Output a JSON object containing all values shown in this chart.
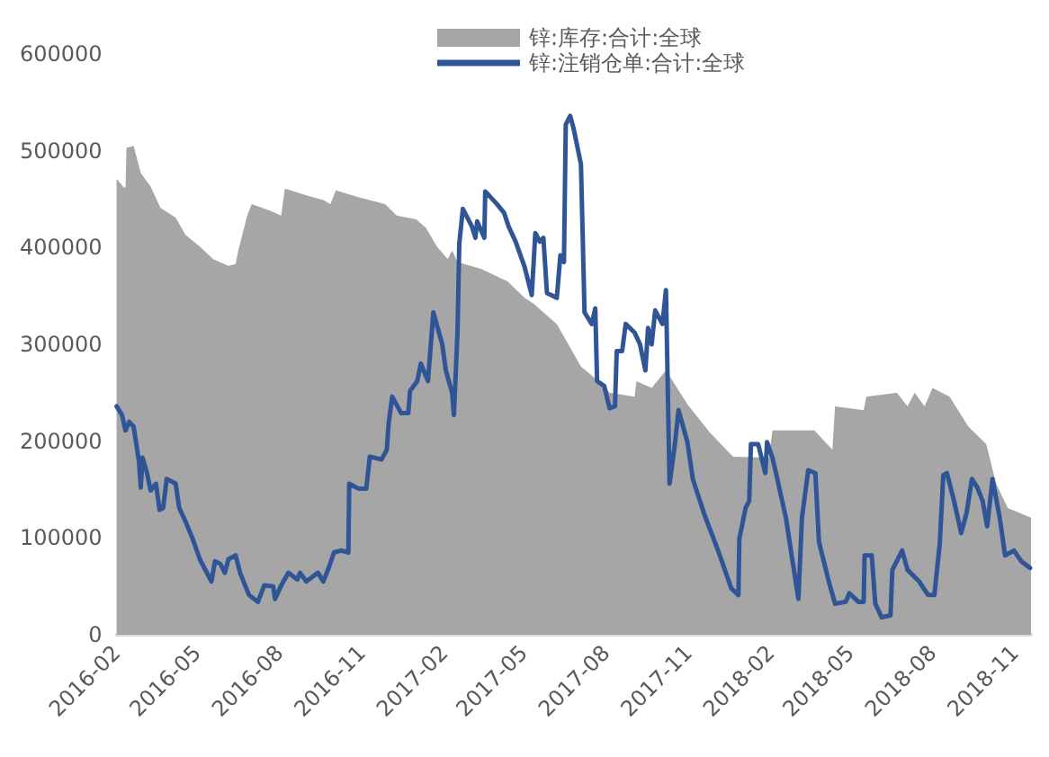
{
  "chart_data": {
    "type": "line",
    "xlim": [
      "2016-02-01",
      "2018-11-19"
    ],
    "xticks": [
      "2016-02",
      "2016-05",
      "2016-08",
      "2016-11",
      "2017-02",
      "2017-05",
      "2017-08",
      "2017-11",
      "2018-02",
      "2018-05",
      "2018-08",
      "2018-11"
    ],
    "ylim": [
      0,
      600000
    ],
    "yticks": [
      0,
      100000,
      200000,
      300000,
      400000,
      500000,
      600000
    ],
    "grid": false,
    "legend": "top",
    "marker": "none",
    "series": [
      {
        "name": "锌:库存:合计:全球",
        "type": "area",
        "color": "#a6a6a6",
        "x": [
          "2016-02-01",
          "2016-02-09",
          "2016-02-11",
          "2016-02-12",
          "2016-02-20",
          "2016-02-28",
          "2016-03-10",
          "2016-03-21",
          "2016-04-07",
          "2016-04-18",
          "2016-05-04",
          "2016-05-19",
          "2016-06-05",
          "2016-06-13",
          "2016-06-16",
          "2016-06-26",
          "2016-07-01",
          "2016-07-22",
          "2016-08-03",
          "2016-08-07",
          "2016-08-31",
          "2016-09-19",
          "2016-09-27",
          "2016-10-03",
          "2016-10-28",
          "2016-11-27",
          "2016-12-10",
          "2017-01-01",
          "2017-01-12",
          "2017-01-24",
          "2017-02-05",
          "2017-02-10",
          "2017-02-16",
          "2017-03-14",
          "2017-04-13",
          "2017-05-02",
          "2017-05-12",
          "2017-06-07",
          "2017-07-04",
          "2017-07-16",
          "2017-08-05",
          "2017-09-02",
          "2017-09-04",
          "2017-09-21",
          "2017-10-07",
          "2017-10-31",
          "2017-11-25",
          "2017-12-21",
          "2018-01-30",
          "2018-02-03",
          "2018-03-22",
          "2018-04-11",
          "2018-04-14",
          "2018-05-16",
          "2018-05-19",
          "2018-06-22",
          "2018-07-04",
          "2018-07-12",
          "2018-07-23",
          "2018-08-01",
          "2018-08-20",
          "2018-09-10",
          "2018-09-30",
          "2018-10-11",
          "2018-10-24",
          "2018-11-19"
        ],
        "values": [
          471000,
          462000,
          462000,
          503000,
          505000,
          477000,
          463000,
          441000,
          431000,
          413000,
          401000,
          388000,
          381000,
          383000,
          397000,
          433000,
          445000,
          438000,
          433000,
          461000,
          454000,
          449000,
          445000,
          459000,
          452000,
          445000,
          433000,
          429000,
          420000,
          401000,
          388000,
          397000,
          385000,
          378000,
          365000,
          348000,
          342000,
          321000,
          277000,
          268000,
          250000,
          246000,
          262000,
          255000,
          273000,
          238000,
          209000,
          184000,
          183000,
          211000,
          211000,
          191000,
          236000,
          232000,
          246000,
          250000,
          236000,
          250000,
          236000,
          255000,
          246000,
          215000,
          197000,
          156000,
          131000,
          121000
        ]
      },
      {
        "name": "锌:注销仓单:合计:全球",
        "type": "line",
        "color": "#2f5597",
        "x": [
          "2016-02-01",
          "2016-02-07",
          "2016-02-11",
          "2016-02-15",
          "2016-02-20",
          "2016-02-26",
          "2016-02-28",
          "2016-03-01",
          "2016-03-06",
          "2016-03-10",
          "2016-03-16",
          "2016-03-20",
          "2016-03-24",
          "2016-03-28",
          "2016-04-07",
          "2016-04-11",
          "2016-04-18",
          "2016-04-26",
          "2016-05-04",
          "2016-05-17",
          "2016-05-21",
          "2016-05-27",
          "2016-06-01",
          "2016-06-05",
          "2016-06-13",
          "2016-06-18",
          "2016-06-28",
          "2016-07-08",
          "2016-07-15",
          "2016-07-25",
          "2016-07-27",
          "2016-08-03",
          "2016-08-11",
          "2016-08-21",
          "2016-08-24",
          "2016-08-31",
          "2016-09-13",
          "2016-09-19",
          "2016-09-25",
          "2016-10-01",
          "2016-10-09",
          "2016-10-17",
          "2016-10-18",
          "2016-10-28",
          "2016-11-06",
          "2016-11-10",
          "2016-11-23",
          "2016-11-29",
          "2016-12-01",
          "2016-12-05",
          "2016-12-15",
          "2016-12-23",
          "2016-12-25",
          "2017-01-02",
          "2017-01-06",
          "2017-01-14",
          "2017-01-20",
          "2017-01-30",
          "2017-02-03",
          "2017-02-10",
          "2017-02-12",
          "2017-02-16",
          "2017-02-18",
          "2017-02-22",
          "2017-03-04",
          "2017-03-08",
          "2017-03-10",
          "2017-03-18",
          "2017-03-19",
          "2017-04-01",
          "2017-04-09",
          "2017-04-14",
          "2017-04-22",
          "2017-05-02",
          "2017-05-10",
          "2017-05-14",
          "2017-05-19",
          "2017-05-23",
          "2017-05-27",
          "2017-06-07",
          "2017-06-11",
          "2017-06-15",
          "2017-06-17",
          "2017-06-22",
          "2017-06-26",
          "2017-07-04",
          "2017-07-08",
          "2017-07-16",
          "2017-07-20",
          "2017-07-22",
          "2017-07-30",
          "2017-08-05",
          "2017-08-11",
          "2017-08-13",
          "2017-08-19",
          "2017-08-23",
          "2017-09-02",
          "2017-09-08",
          "2017-09-14",
          "2017-09-17",
          "2017-09-21",
          "2017-09-25",
          "2017-10-03",
          "2017-10-07",
          "2017-10-11",
          "2017-10-17",
          "2017-10-21",
          "2017-10-31",
          "2017-11-06",
          "2017-11-19",
          "2017-12-05",
          "2017-12-19",
          "2017-12-27",
          "2017-12-28",
          "2018-01-04",
          "2018-01-08",
          "2018-01-10",
          "2018-01-18",
          "2018-01-26",
          "2018-01-28",
          "2018-02-03",
          "2018-02-07",
          "2018-02-18",
          "2018-02-26",
          "2018-03-04",
          "2018-03-08",
          "2018-03-15",
          "2018-03-23",
          "2018-03-27",
          "2018-04-07",
          "2018-04-14",
          "2018-04-26",
          "2018-04-30",
          "2018-05-10",
          "2018-05-16",
          "2018-05-17",
          "2018-05-25",
          "2018-05-29",
          "2018-06-05",
          "2018-06-15",
          "2018-06-17",
          "2018-06-28",
          "2018-07-04",
          "2018-07-17",
          "2018-07-27",
          "2018-08-03",
          "2018-08-09",
          "2018-08-13",
          "2018-08-17",
          "2018-08-25",
          "2018-09-02",
          "2018-09-08",
          "2018-09-14",
          "2018-09-20",
          "2018-09-26",
          "2018-10-01",
          "2018-10-07",
          "2018-10-15",
          "2018-10-21",
          "2018-10-31",
          "2018-11-08",
          "2018-11-18"
        ],
        "values": [
          236000,
          227000,
          211000,
          220000,
          215000,
          179000,
          152000,
          183000,
          167000,
          149000,
          156000,
          129000,
          131000,
          161000,
          156000,
          131000,
          117000,
          99000,
          78000,
          55000,
          76000,
          73000,
          64000,
          78000,
          82000,
          64000,
          41000,
          34000,
          51000,
          50000,
          37000,
          51000,
          64000,
          57000,
          64000,
          55000,
          64000,
          55000,
          69000,
          85000,
          87000,
          85000,
          156000,
          151000,
          151000,
          184000,
          181000,
          191000,
          218000,
          246000,
          229000,
          229000,
          252000,
          262000,
          280000,
          262000,
          333000,
          300000,
          273000,
          250000,
          227000,
          312000,
          404000,
          440000,
          422000,
          410000,
          427000,
          410000,
          458000,
          445000,
          436000,
          422000,
          406000,
          380000,
          351000,
          415000,
          406000,
          410000,
          353000,
          348000,
          392000,
          385000,
          527000,
          536000,
          522000,
          486000,
          333000,
          321000,
          337000,
          262000,
          257000,
          234000,
          236000,
          293000,
          293000,
          321000,
          312000,
          300000,
          273000,
          317000,
          300000,
          335000,
          321000,
          356000,
          156000,
          197000,
          232000,
          199000,
          161000,
          124000,
          85000,
          48000,
          41000,
          99000,
          131000,
          138000,
          197000,
          197000,
          167000,
          199000,
          183000,
          167000,
          121000,
          73000,
          37000,
          121000,
          170000,
          167000,
          96000,
          55000,
          32000,
          34000,
          43000,
          34000,
          34000,
          82000,
          82000,
          32000,
          18000,
          20000,
          67000,
          87000,
          67000,
          55000,
          41000,
          41000,
          94000,
          165000,
          167000,
          138000,
          105000,
          126000,
          161000,
          152000,
          138000,
          112000,
          161000,
          121000,
          82000,
          87000,
          76000,
          69000
        ]
      }
    ]
  }
}
